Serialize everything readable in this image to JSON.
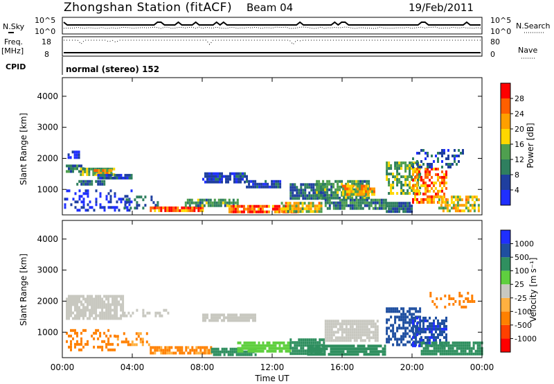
{
  "header": {
    "station": "Zhongshan Station (fitACF)",
    "beam": "Beam 04",
    "date": "19/Feb/2011"
  },
  "colors": {
    "power_scale": [
      "#1f2fff",
      "#1f3f9f",
      "#2f7f5f",
      "#4f9f4f",
      "#ffd700",
      "#ff9f00",
      "#ff5f00",
      "#ff0000"
    ],
    "velocity_scale": [
      "#1f2fff",
      "#1f4fa0",
      "#2f8f5f",
      "#5fcf3f",
      "#c8c8c0",
      "#ffb040",
      "#ff8000",
      "#ff4000",
      "#ff0000"
    ]
  },
  "panels": {
    "sky_noise": {
      "label": "N.Sky",
      "right_label": "N.Search",
      "left_ticks": [
        "10^5",
        "10^0"
      ],
      "right_ticks": [
        "10^5",
        "10^0"
      ]
    },
    "frequency": {
      "label_line1": "Freq.",
      "label_line2": "[MHz]",
      "right_label": "Nave",
      "left_ticks": [
        "18",
        "8"
      ],
      "right_ticks": [
        "80",
        "0"
      ]
    },
    "cpid": {
      "label": "CPID",
      "mode": "normal (stereo) 152"
    },
    "power": {
      "ylabel": "Slant Range [km]",
      "colorbar_label": "Power [dB]",
      "colorbar_ticks": [
        "28",
        "24",
        "20",
        "16",
        "12",
        "8",
        "4"
      ]
    },
    "velocity": {
      "ylabel": "Slant Range [km]",
      "colorbar_label": "Velocity [m s⁻¹]",
      "colorbar_ticks": [
        "1000",
        "500",
        "100",
        "25",
        "-25",
        "-100",
        "-500",
        "-1000"
      ]
    }
  },
  "xaxis": {
    "label": "Time UT",
    "ticks": [
      "00:00",
      "04:00",
      "08:00",
      "12:00",
      "16:00",
      "20:00",
      "00:00"
    ]
  },
  "chart_data": [
    {
      "type": "heatmap",
      "title": "Power",
      "xlabel": "Time UT",
      "ylabel": "Slant Range [km]",
      "xlim": [
        0,
        24
      ],
      "ylim": [
        180,
        4600
      ],
      "yticks": [
        1000,
        2000,
        3000,
        4000
      ],
      "colorbar": "Power [dB]",
      "blobs": [
        {
          "t0": 0.3,
          "t1": 1.0,
          "r0": 2000,
          "r1": 2250,
          "v": 4
        },
        {
          "t0": 0.2,
          "t1": 1.2,
          "r0": 1600,
          "r1": 1800,
          "v": 10
        },
        {
          "t0": 1.0,
          "t1": 3.0,
          "r0": 1450,
          "r1": 1700,
          "v": 14
        },
        {
          "t0": 1.8,
          "t1": 2.8,
          "r0": 1500,
          "r1": 1650,
          "v": 20
        },
        {
          "t0": 0.8,
          "t1": 2.4,
          "r0": 1150,
          "r1": 1300,
          "v": 8
        },
        {
          "t0": 2.0,
          "t1": 4.0,
          "r0": 1350,
          "r1": 1500,
          "v": 6
        },
        {
          "t0": 0.1,
          "t1": 4.0,
          "r0": 300,
          "r1": 1000,
          "v": 4,
          "sparse": true
        },
        {
          "t0": 3.5,
          "t1": 5.5,
          "r0": 400,
          "r1": 800,
          "v": 8,
          "sparse": true
        },
        {
          "t0": 5.0,
          "t1": 8.0,
          "r0": 300,
          "r1": 450,
          "v": 26
        },
        {
          "t0": 7.0,
          "t1": 10.0,
          "r0": 450,
          "r1": 700,
          "v": 12
        },
        {
          "t0": 8.0,
          "t1": 10.5,
          "r0": 1200,
          "r1": 1550,
          "v": 6
        },
        {
          "t0": 9.5,
          "t1": 13.5,
          "r0": 300,
          "r1": 500,
          "v": 26
        },
        {
          "t0": 10.5,
          "t1": 12.5,
          "r0": 1100,
          "r1": 1300,
          "v": 6
        },
        {
          "t0": 12.5,
          "t1": 14.8,
          "r0": 300,
          "r1": 600,
          "v": 18
        },
        {
          "t0": 13.0,
          "t1": 15.0,
          "r0": 700,
          "r1": 1200,
          "v": 8
        },
        {
          "t0": 14.5,
          "t1": 17.5,
          "r0": 700,
          "r1": 1300,
          "v": 12
        },
        {
          "t0": 16.0,
          "t1": 17.8,
          "r0": 800,
          "r1": 1150,
          "v": 20
        },
        {
          "t0": 15.0,
          "t1": 18.5,
          "r0": 350,
          "r1": 700,
          "v": 10
        },
        {
          "t0": 18.5,
          "t1": 20.5,
          "r0": 900,
          "r1": 1900,
          "v": 14,
          "streak": true
        },
        {
          "t0": 20.0,
          "t1": 22.0,
          "r0": 600,
          "r1": 1700,
          "v": 24,
          "streak": true
        },
        {
          "t0": 21.5,
          "t1": 23.8,
          "r0": 300,
          "r1": 800,
          "v": 18,
          "streak": true
        },
        {
          "t0": 20.0,
          "t1": 23.0,
          "r0": 1700,
          "r1": 2300,
          "v": 6,
          "sparse": true
        },
        {
          "t0": 18.5,
          "t1": 20.0,
          "r0": 300,
          "r1": 600,
          "v": 8
        }
      ]
    },
    {
      "type": "heatmap",
      "title": "Velocity",
      "xlabel": "Time UT",
      "ylabel": "Slant Range [km]",
      "xlim": [
        0,
        24
      ],
      "ylim": [
        180,
        4600
      ],
      "yticks": [
        1000,
        2000,
        3000,
        4000
      ],
      "colorbar": "Velocity [m s⁻¹]",
      "blobs": [
        {
          "t0": 0.2,
          "t1": 3.5,
          "r0": 1400,
          "r1": 2200,
          "v": 0
        },
        {
          "t0": 3.5,
          "t1": 6.0,
          "r0": 1500,
          "r1": 1750,
          "v": 0,
          "sparse": true
        },
        {
          "t0": 8.0,
          "t1": 11.0,
          "r0": 1350,
          "r1": 1600,
          "v": 0
        },
        {
          "t0": 0.2,
          "t1": 3.0,
          "r0": 400,
          "r1": 1100,
          "v": -200,
          "sparse": true
        },
        {
          "t0": 3.0,
          "t1": 5.0,
          "r0": 600,
          "r1": 1000,
          "v": -100,
          "sparse": true
        },
        {
          "t0": 5.0,
          "t1": 8.5,
          "r0": 300,
          "r1": 550,
          "v": -120
        },
        {
          "t0": 8.5,
          "t1": 11.0,
          "r0": 300,
          "r1": 500,
          "v": 150
        },
        {
          "t0": 10.0,
          "t1": 13.0,
          "r0": 350,
          "r1": 700,
          "v": 60
        },
        {
          "t0": 13.0,
          "t1": 15.0,
          "r0": 300,
          "r1": 800,
          "v": 300
        },
        {
          "t0": 15.0,
          "t1": 18.0,
          "r0": 700,
          "r1": 1400,
          "v": 0
        },
        {
          "t0": 14.0,
          "t1": 18.5,
          "r0": 300,
          "r1": 600,
          "v": 200
        },
        {
          "t0": 18.5,
          "t1": 20.5,
          "r0": 600,
          "r1": 1800,
          "v": 800,
          "streak": true
        },
        {
          "t0": 20.0,
          "t1": 22.0,
          "r0": 600,
          "r1": 1500,
          "v": 900,
          "streak": true
        },
        {
          "t0": 20.5,
          "t1": 24.0,
          "r0": 300,
          "r1": 700,
          "v": 150
        },
        {
          "t0": 21.0,
          "t1": 23.5,
          "r0": 1800,
          "r1": 2300,
          "v": -300,
          "sparse": true
        }
      ]
    }
  ]
}
